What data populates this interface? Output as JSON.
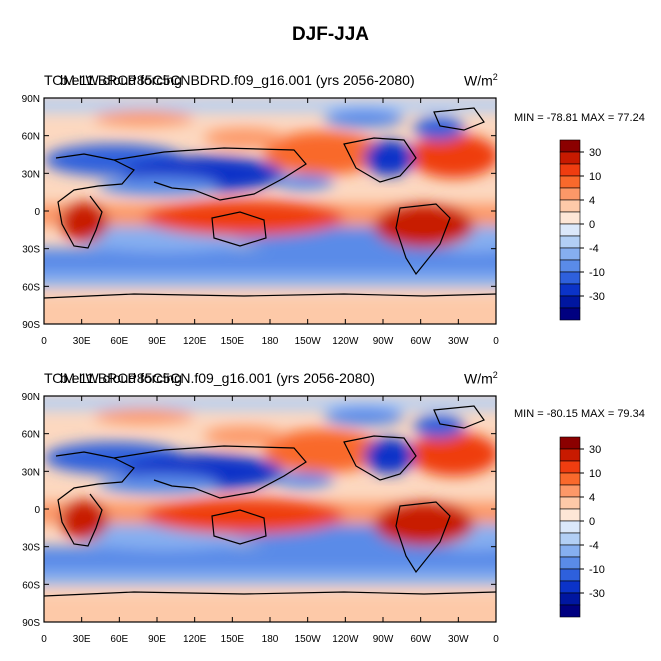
{
  "title": "DJF-JJA",
  "units_base": "W/m",
  "units_exp": "2",
  "panels": [
    {
      "title_left": "TOM LW cloud forcing",
      "title_center": "b.e11.BRCP85C5CNBDRD.f09_g16.001 (yrs 2056-2080)",
      "minmax": "MIN = -78.81 MAX =  77.24"
    },
    {
      "title_left": "TOM LW cloud forcing",
      "title_center": "b.e11.BRCP85C5CN.f09_g16.001 (yrs 2056-2080)",
      "minmax": "MIN = -80.15 MAX =  79.34"
    }
  ],
  "lat_labels": [
    "90N",
    "60N",
    "30N",
    "0",
    "30S",
    "60S",
    "90S"
  ],
  "lon_labels": [
    "0",
    "30E",
    "60E",
    "90E",
    "120E",
    "150E",
    "180",
    "150W",
    "120W",
    "90W",
    "60W",
    "30W",
    "0"
  ],
  "colorbar": {
    "colors": [
      "#8b0000",
      "#c81a00",
      "#ef3d10",
      "#f9692c",
      "#fc9868",
      "#fdc9a8",
      "#fde6d6",
      "#dbe8fa",
      "#b2cff5",
      "#86aff0",
      "#5a8be8",
      "#2e60dc",
      "#0b33c8",
      "#0016a0",
      "#000080"
    ],
    "labels": [
      "30",
      "10",
      "4",
      "0",
      "-4",
      "-10",
      "-30"
    ]
  },
  "palette": {
    "ocean_base": "#fcd8c0",
    "land_line": "#000000"
  }
}
